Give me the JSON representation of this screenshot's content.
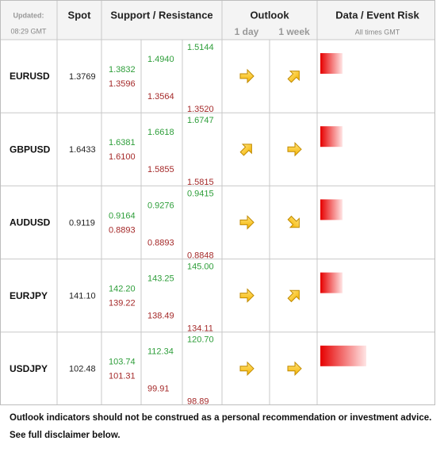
{
  "header": {
    "updated": "Updated:",
    "time": "08:29 GMT",
    "spot": "Spot",
    "levels": "Support / Resistance",
    "outlook": "Outlook",
    "day": "1 day",
    "week": "1 week",
    "risk": "Data / Event Risk",
    "times": "All times GMT"
  },
  "table": {
    "rows": [
      {
        "pair": "EURUSD",
        "spot": "1.3769",
        "levels": [
          [
            "1.3832",
            "1.3596"
          ],
          [
            "1.4940",
            "1.3564"
          ],
          [
            "1.5144",
            "1.3520"
          ]
        ]
      },
      {
        "pair": "GBPUSD",
        "spot": "1.6433",
        "levels": [
          [
            "1.6381",
            "1.6100"
          ],
          [
            "1.6618",
            "1.5855"
          ],
          [
            "1.6747",
            "1.5815"
          ]
        ]
      },
      {
        "pair": "AUDUSD",
        "spot": "0.9119",
        "levels": [
          [
            "0.9164",
            "0.8893"
          ],
          [
            "0.9276",
            "0.8893"
          ],
          [
            "0.9415",
            "0.8848"
          ]
        ]
      },
      {
        "pair": "EURJPY",
        "spot": "141.10",
        "levels": [
          [
            "142.20",
            "139.22"
          ],
          [
            "143.25",
            "138.49"
          ],
          [
            "145.00",
            "134.11"
          ]
        ]
      },
      {
        "pair": "USDJPY",
        "spot": "102.48",
        "levels": [
          [
            "103.74",
            "101.31"
          ],
          [
            "112.34",
            "99.91"
          ],
          [
            "120.70",
            "98.89"
          ]
        ]
      }
    ]
  },
  "footer": {
    "lines": [
      "Outlook indicators should not be construed as a personal recommendation or investment advice.",
      "See full disclaimer below."
    ]
  }
}
